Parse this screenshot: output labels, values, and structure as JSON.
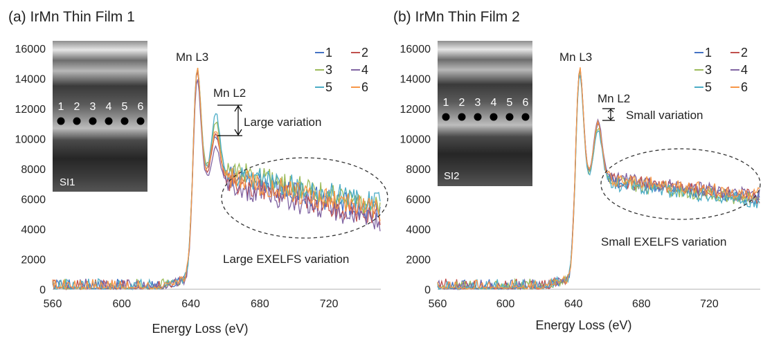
{
  "chart_data": [
    {
      "type": "line",
      "title": "(a) IrMn Thin Film 1",
      "xlabel": "Energy Loss (eV)",
      "ylabel": "",
      "xlim": [
        560,
        750
      ],
      "ylim": [
        0,
        16000
      ],
      "xticks": [
        560,
        600,
        640,
        680,
        720
      ],
      "yticks": [
        0,
        2000,
        4000,
        6000,
        8000,
        10000,
        12000,
        14000,
        16000
      ],
      "legend": "top-right",
      "inset": {
        "label": "SI1",
        "points": [
          "1",
          "2",
          "3",
          "4",
          "5",
          "6"
        ]
      },
      "annotations": {
        "peak1": "Mn L3",
        "peak2": "Mn L2",
        "variation": "Large variation",
        "exelfs": "Large EXELFS variation"
      },
      "series": [
        {
          "name": "1",
          "color": "#4472c4",
          "peakL3": 14700,
          "peakL2": 10900,
          "tail_start": 7600,
          "tail_end": 5100
        },
        {
          "name": "2",
          "color": "#c0504d",
          "peakL3": 14900,
          "peakL2": 11200,
          "tail_start": 7200,
          "tail_end": 4700
        },
        {
          "name": "3",
          "color": "#9bbb59",
          "peakL3": 14600,
          "peakL2": 11600,
          "tail_start": 7900,
          "tail_end": 5500
        },
        {
          "name": "4",
          "color": "#8064a2",
          "peakL3": 14500,
          "peakL2": 10500,
          "tail_start": 6900,
          "tail_end": 4400
        },
        {
          "name": "5",
          "color": "#4bacc6",
          "peakL3": 14800,
          "peakL2": 12300,
          "tail_start": 7700,
          "tail_end": 5700
        },
        {
          "name": "6",
          "color": "#f79646",
          "peakL3": 14900,
          "peakL2": 11400,
          "tail_start": 7400,
          "tail_end": 5200
        }
      ]
    },
    {
      "type": "line",
      "title": "(b) IrMn Thin Film 2",
      "xlabel": "Energy Loss (eV)",
      "ylabel": "",
      "xlim": [
        560,
        750
      ],
      "ylim": [
        0,
        16000
      ],
      "xticks": [
        560,
        600,
        640,
        680,
        720
      ],
      "yticks": [
        0,
        2000,
        4000,
        6000,
        8000,
        10000,
        12000,
        14000,
        16000
      ],
      "legend": "top-right",
      "inset": {
        "label": "SI2",
        "points": [
          "1",
          "2",
          "3",
          "4",
          "5",
          "6"
        ]
      },
      "annotations": {
        "peak1": "Mn L3",
        "peak2": "Mn L2",
        "variation": "Small variation",
        "exelfs": "Small EXELFS variation"
      },
      "series": [
        {
          "name": "1",
          "color": "#4472c4",
          "peakL3": 14900,
          "peakL2": 11800,
          "tail_start": 7200,
          "tail_end": 6000
        },
        {
          "name": "2",
          "color": "#c0504d",
          "peakL3": 14950,
          "peakL2": 11900,
          "tail_start": 7300,
          "tail_end": 6100
        },
        {
          "name": "3",
          "color": "#9bbb59",
          "peakL3": 14850,
          "peakL2": 11700,
          "tail_start": 7100,
          "tail_end": 5900
        },
        {
          "name": "4",
          "color": "#8064a2",
          "peakL3": 14900,
          "peakL2": 12000,
          "tail_start": 7400,
          "tail_end": 6200
        },
        {
          "name": "5",
          "color": "#4bacc6",
          "peakL3": 14800,
          "peakL2": 11600,
          "tail_start": 7000,
          "tail_end": 5800
        },
        {
          "name": "6",
          "color": "#f79646",
          "peakL3": 14950,
          "peakL2": 11900,
          "tail_start": 7300,
          "tail_end": 6300
        }
      ]
    }
  ]
}
